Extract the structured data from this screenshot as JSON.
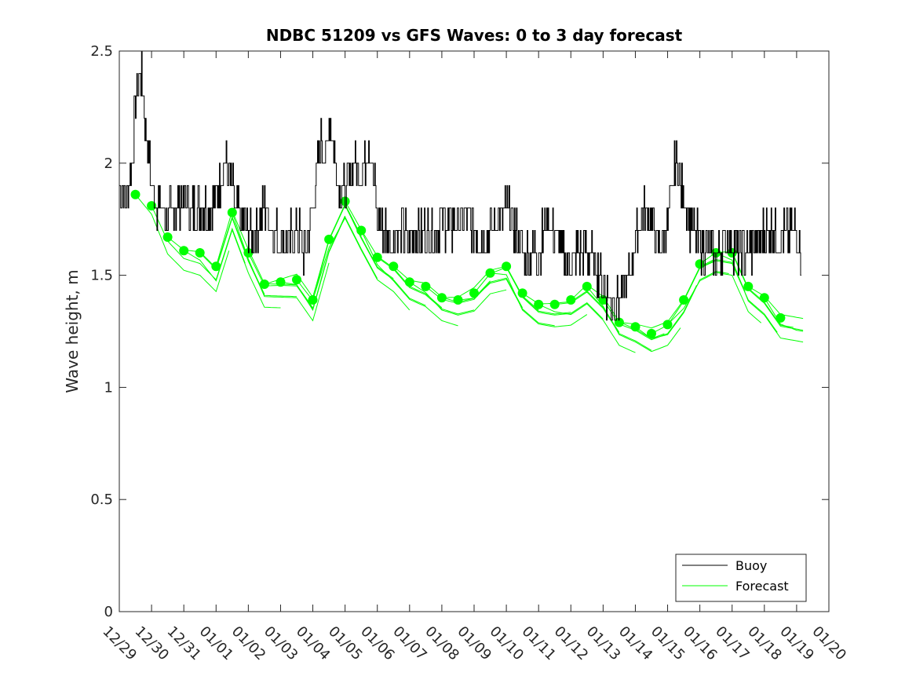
{
  "chart_data": {
    "type": "line",
    "title": "NDBC 51209 vs GFS Waves: 0 to 3 day forecast",
    "xlabel": "",
    "ylabel": "Wave height, m",
    "xlim": [
      0,
      22
    ],
    "ylim": [
      0,
      2.5
    ],
    "yticks": [
      0,
      0.5,
      1,
      1.5,
      2,
      2.5
    ],
    "ytick_labels": [
      "0",
      "0.5",
      "1",
      "1.5",
      "2",
      "2.5"
    ],
    "xtick_labels": [
      "12/29",
      "12/30",
      "12/31",
      "01/01",
      "01/02",
      "01/03",
      "01/04",
      "01/05",
      "01/06",
      "01/07",
      "01/08",
      "01/09",
      "01/10",
      "01/11",
      "01/12",
      "01/13",
      "01/14",
      "01/15",
      "01/16",
      "01/17",
      "01/18",
      "01/19",
      "01/20"
    ],
    "grid": false,
    "legend": {
      "position": "bottom-right",
      "entries": [
        "Buoy",
        "Forecast"
      ]
    },
    "colors": {
      "buoy": "#000000",
      "forecast": "#00ff00",
      "axis": "#262626"
    },
    "series": [
      {
        "name": "Buoy",
        "x": [
          0,
          0.25,
          0.4,
          0.5,
          0.65,
          0.75,
          0.85,
          1.0,
          1.1,
          1.25,
          1.5,
          1.75,
          2.0,
          2.25,
          2.5,
          2.75,
          3.0,
          3.25,
          3.5,
          3.6,
          3.75,
          4.0,
          4.25,
          4.5,
          4.75,
          5.0,
          5.25,
          5.5,
          5.75,
          6.0,
          6.25,
          6.4,
          6.5,
          6.6,
          6.75,
          6.9,
          7.0,
          7.25,
          7.5,
          7.75,
          7.9,
          8.0,
          8.25,
          8.5,
          8.75,
          9.0,
          9.25,
          9.5,
          9.75,
          10.0,
          10.25,
          10.5,
          10.75,
          11.0,
          11.25,
          11.5,
          11.75,
          12.0,
          12.25,
          12.5,
          12.75,
          13.0,
          13.25,
          13.5,
          13.75,
          14.0,
          14.25,
          14.5,
          14.75,
          15.0,
          15.25,
          15.5,
          15.75,
          16.0,
          16.25,
          16.5,
          16.75,
          17.0,
          17.25,
          17.5,
          17.75,
          18.0,
          18.25,
          18.5,
          18.75,
          19.0,
          19.25,
          19.5,
          19.75,
          20.0,
          20.25,
          20.5,
          20.75,
          21.0,
          21.15
        ],
        "values": [
          1.9,
          1.85,
          2.0,
          2.3,
          2.4,
          2.3,
          2.1,
          1.9,
          1.85,
          1.8,
          1.75,
          1.8,
          1.85,
          1.8,
          1.8,
          1.8,
          1.85,
          2.0,
          1.9,
          1.8,
          1.75,
          1.7,
          1.7,
          1.8,
          1.7,
          1.65,
          1.65,
          1.7,
          1.6,
          1.8,
          2.1,
          2.0,
          2.2,
          2.1,
          1.95,
          1.9,
          1.85,
          2.0,
          1.95,
          2.1,
          1.9,
          1.75,
          1.7,
          1.65,
          1.7,
          1.65,
          1.7,
          1.7,
          1.7,
          1.75,
          1.7,
          1.75,
          1.75,
          1.7,
          1.65,
          1.7,
          1.75,
          1.8,
          1.7,
          1.6,
          1.6,
          1.6,
          1.75,
          1.7,
          1.6,
          1.55,
          1.6,
          1.6,
          1.55,
          1.45,
          1.4,
          1.4,
          1.45,
          1.65,
          1.8,
          1.75,
          1.6,
          1.75,
          2.0,
          1.85,
          1.7,
          1.65,
          1.6,
          1.6,
          1.65,
          1.65,
          1.6,
          1.6,
          1.65,
          1.7,
          1.7,
          1.65,
          1.7,
          1.7,
          1.6
        ]
      },
      {
        "name": "Forecast",
        "x": [
          0.5,
          1.0,
          1.5,
          2.0,
          2.5,
          3.0,
          3.5,
          4.0,
          4.5,
          5.0,
          5.5,
          6.0,
          6.5,
          7.0,
          7.5,
          8.0,
          8.5,
          9.0,
          9.5,
          10.0,
          10.5,
          11.0,
          11.5,
          12.0,
          12.5,
          13.0,
          13.5,
          14.0,
          14.5,
          15.0,
          15.5,
          16.0,
          16.5,
          17.0,
          17.5,
          18.0,
          18.5,
          19.0,
          19.5,
          20.0,
          20.5
        ],
        "values": [
          1.86,
          1.81,
          1.67,
          1.61,
          1.6,
          1.54,
          1.78,
          1.6,
          1.46,
          1.47,
          1.48,
          1.39,
          1.66,
          1.83,
          1.7,
          1.58,
          1.54,
          1.47,
          1.45,
          1.4,
          1.39,
          1.42,
          1.51,
          1.54,
          1.42,
          1.37,
          1.37,
          1.39,
          1.45,
          1.39,
          1.29,
          1.27,
          1.24,
          1.28,
          1.39,
          1.55,
          1.6,
          1.6,
          1.45,
          1.4,
          1.31
        ]
      }
    ]
  }
}
